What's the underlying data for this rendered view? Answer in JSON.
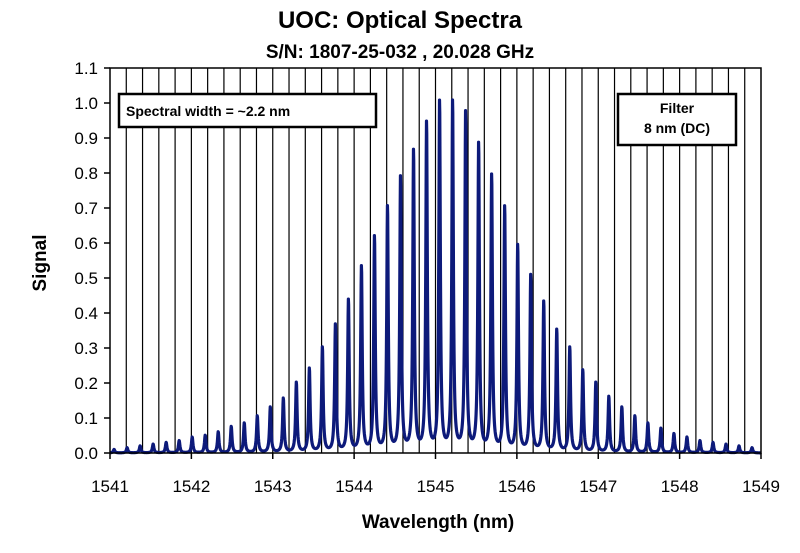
{
  "chart_data": {
    "type": "line",
    "title": "UOC: Optical Spectra",
    "subtitle": "S/N: 1807-25-032 , 20.028 GHz",
    "xlabel": "Wavelength (nm)",
    "ylabel": "Signal",
    "xlim": [
      1541,
      1549
    ],
    "ylim": [
      0.0,
      1.1
    ],
    "x_ticks": [
      "1541",
      "1542",
      "1543",
      "1544",
      "1545",
      "1546",
      "1547",
      "1548",
      "1549"
    ],
    "y_ticks": [
      "0.0",
      "0.1",
      "0.2",
      "0.3",
      "0.4",
      "0.5",
      "0.6",
      "0.7",
      "0.8",
      "0.9",
      "1.0",
      "1.1"
    ],
    "grid": "vertical",
    "annotations": [
      {
        "text": "Spectral width = ~2.2 nm",
        "position": "top-left"
      },
      {
        "lines": [
          "Filter",
          "8 nm (DC)"
        ],
        "position": "top-right"
      }
    ],
    "series_color": "#0d1a7a",
    "peaks": {
      "x": [
        1541.05,
        1541.21,
        1541.37,
        1541.53,
        1541.69,
        1541.85,
        1542.01,
        1542.17,
        1542.33,
        1542.49,
        1542.65,
        1542.81,
        1542.97,
        1543.13,
        1543.29,
        1543.45,
        1543.61,
        1543.77,
        1543.93,
        1544.09,
        1544.25,
        1544.41,
        1544.57,
        1544.73,
        1544.89,
        1545.05,
        1545.21,
        1545.37,
        1545.53,
        1545.69,
        1545.85,
        1546.01,
        1546.17,
        1546.33,
        1546.49,
        1546.65,
        1546.81,
        1546.97,
        1547.13,
        1547.29,
        1547.45,
        1547.61,
        1547.77,
        1547.93,
        1548.09,
        1548.25,
        1548.41,
        1548.57,
        1548.73,
        1548.89
      ],
      "y": [
        0.01,
        0.015,
        0.02,
        0.025,
        0.03,
        0.035,
        0.045,
        0.05,
        0.06,
        0.075,
        0.085,
        0.105,
        0.13,
        0.155,
        0.2,
        0.24,
        0.3,
        0.365,
        0.435,
        0.53,
        0.615,
        0.7,
        0.785,
        0.86,
        0.94,
        1.0,
        1.0,
        0.97,
        0.88,
        0.79,
        0.7,
        0.59,
        0.505,
        0.43,
        0.35,
        0.3,
        0.235,
        0.2,
        0.16,
        0.13,
        0.105,
        0.085,
        0.07,
        0.055,
        0.045,
        0.035,
        0.03,
        0.025,
        0.02,
        0.015
      ]
    }
  }
}
